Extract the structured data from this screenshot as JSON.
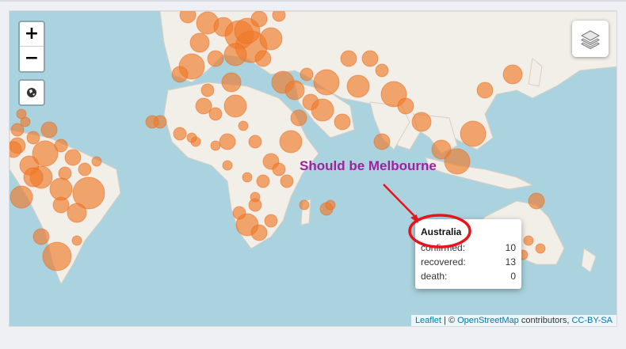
{
  "map": {
    "zoom_in_label": "+",
    "zoom_out_label": "−",
    "locate_icon": "globe-icon",
    "layers_icon": "layers-icon",
    "land_color": "#f2efe9",
    "water_color": "#aad3df",
    "marker_color": "#f07a2a"
  },
  "popup": {
    "title": "Australia",
    "rows": [
      {
        "label": "confirmed:",
        "value": "10"
      },
      {
        "label": "recovered:",
        "value": "13"
      },
      {
        "label": "death:",
        "value": "0"
      }
    ]
  },
  "annotation": {
    "text": "Should be Melbourne",
    "color": "#a0209e",
    "circle_color": "#e8141b"
  },
  "attribution": {
    "leaflet": "Leaflet",
    "separator": "| ©",
    "osm": "OpenStreetMap",
    "contributors": "contributors,",
    "license": "CC-BY-SA"
  }
}
